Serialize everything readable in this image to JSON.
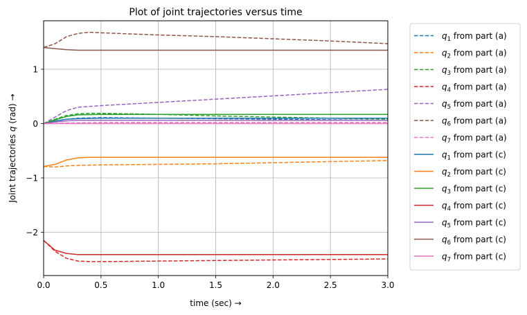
{
  "chart_data": {
    "type": "line",
    "title": "Plot of joint trajectories versus time",
    "xlabel": "time (sec)  →",
    "ylabel": "Joint trajectories q (rad)  →",
    "xlim": [
      0,
      3
    ],
    "ylim": [
      -2.8,
      1.9
    ],
    "xticks": [
      0,
      0.5,
      1,
      1.5,
      2,
      2.5,
      3
    ],
    "xtick_labels": [
      "0.0",
      "0.5",
      "1.0",
      "1.5",
      "2.0",
      "2.5",
      "3.0"
    ],
    "yticks": [
      -2,
      -1,
      0,
      1
    ],
    "ytick_labels": [
      "−2",
      "−1",
      "0",
      "1"
    ],
    "grid": true,
    "legend_position": "outside-right",
    "series": [
      {
        "name": "q_1 from part (a)",
        "joint": "1",
        "part": "(a)",
        "color": "#1f77b4",
        "dash": "dashed",
        "x": [
          0,
          0.1,
          0.2,
          0.3,
          0.5,
          1,
          1.5,
          2,
          2.5,
          3
        ],
        "y": [
          0,
          0.04,
          0.08,
          0.1,
          0.11,
          0.1,
          0.09,
          0.08,
          0.07,
          0.06
        ]
      },
      {
        "name": "q_2 from part (a)",
        "joint": "2",
        "part": "(a)",
        "color": "#ff7f0e",
        "dash": "dashed",
        "x": [
          0,
          0.1,
          0.2,
          0.3,
          0.5,
          1,
          1.5,
          2,
          2.5,
          3
        ],
        "y": [
          -0.79,
          -0.8,
          -0.78,
          -0.77,
          -0.76,
          -0.75,
          -0.74,
          -0.72,
          -0.7,
          -0.68
        ]
      },
      {
        "name": "q_3 from part (a)",
        "joint": "3",
        "part": "(a)",
        "color": "#2ca02c",
        "dash": "dashed",
        "x": [
          0,
          0.1,
          0.2,
          0.3,
          0.4,
          0.5,
          1,
          1.5,
          2,
          2.5,
          3
        ],
        "y": [
          0,
          0.08,
          0.15,
          0.18,
          0.19,
          0.19,
          0.17,
          0.14,
          0.12,
          0.1,
          0.08
        ]
      },
      {
        "name": "q_4 from part (a)",
        "joint": "4",
        "part": "(a)",
        "color": "#d62728",
        "dash": "dashed",
        "x": [
          0,
          0.1,
          0.2,
          0.3,
          0.4,
          0.5,
          1,
          1.5,
          2,
          2.5,
          3
        ],
        "y": [
          -2.15,
          -2.35,
          -2.48,
          -2.53,
          -2.54,
          -2.54,
          -2.53,
          -2.52,
          -2.51,
          -2.5,
          -2.49
        ]
      },
      {
        "name": "q_5 from part (a)",
        "joint": "5",
        "part": "(a)",
        "color": "#9467bd",
        "dash": "dashed",
        "x": [
          0,
          0.1,
          0.2,
          0.3,
          0.5,
          1,
          1.5,
          2,
          2.5,
          3
        ],
        "y": [
          0,
          0.12,
          0.24,
          0.3,
          0.33,
          0.39,
          0.45,
          0.51,
          0.57,
          0.63
        ]
      },
      {
        "name": "q_6 from part (a)",
        "joint": "6",
        "part": "(a)",
        "color": "#8c564b",
        "dash": "dashed",
        "x": [
          0,
          0.1,
          0.2,
          0.3,
          0.4,
          0.5,
          1,
          1.5,
          2,
          2.5,
          3
        ],
        "y": [
          1.4,
          1.47,
          1.6,
          1.66,
          1.68,
          1.67,
          1.63,
          1.6,
          1.56,
          1.52,
          1.47
        ]
      },
      {
        "name": "q_7 from part (a)",
        "joint": "7",
        "part": "(a)",
        "color": "#e377c2",
        "dash": "dashed",
        "x": [
          0,
          0.2,
          0.5,
          1,
          1.5,
          2,
          2.5,
          3
        ],
        "y": [
          0,
          0.01,
          0.02,
          0.02,
          0.02,
          0.02,
          0.02,
          0.02
        ]
      },
      {
        "name": "q_1 from part (c)",
        "joint": "1",
        "part": "(c)",
        "color": "#1f77b4",
        "dash": "solid",
        "x": [
          0,
          0.1,
          0.2,
          0.3,
          0.5,
          1,
          1.5,
          2,
          2.5,
          3
        ],
        "y": [
          0,
          0.05,
          0.08,
          0.09,
          0.1,
          0.1,
          0.1,
          0.1,
          0.1,
          0.1
        ]
      },
      {
        "name": "q_2 from part (c)",
        "joint": "2",
        "part": "(c)",
        "color": "#ff7f0e",
        "dash": "solid",
        "x": [
          0,
          0.1,
          0.2,
          0.3,
          0.4,
          0.5,
          1,
          1.5,
          2,
          2.5,
          3
        ],
        "y": [
          -0.79,
          -0.75,
          -0.67,
          -0.63,
          -0.62,
          -0.62,
          -0.62,
          -0.62,
          -0.62,
          -0.62,
          -0.62
        ]
      },
      {
        "name": "q_3 from part (c)",
        "joint": "3",
        "part": "(c)",
        "color": "#2ca02c",
        "dash": "solid",
        "x": [
          0,
          0.1,
          0.2,
          0.3,
          0.5,
          1,
          1.5,
          2,
          2.5,
          3
        ],
        "y": [
          0,
          0.07,
          0.13,
          0.16,
          0.17,
          0.17,
          0.17,
          0.17,
          0.17,
          0.17
        ]
      },
      {
        "name": "q_4 from part (c)",
        "joint": "4",
        "part": "(c)",
        "color": "#d62728",
        "dash": "solid",
        "x": [
          0,
          0.1,
          0.2,
          0.3,
          0.5,
          1,
          1.5,
          2,
          2.5,
          3
        ],
        "y": [
          -2.15,
          -2.33,
          -2.39,
          -2.41,
          -2.41,
          -2.41,
          -2.41,
          -2.41,
          -2.41,
          -2.41
        ]
      },
      {
        "name": "q_5 from part (c)",
        "joint": "5",
        "part": "(c)",
        "color": "#9467bd",
        "dash": "solid",
        "x": [
          0,
          0.1,
          0.2,
          0.3,
          0.5,
          1,
          1.5,
          2,
          2.5,
          3
        ],
        "y": [
          0,
          0.03,
          0.05,
          0.06,
          0.06,
          0.06,
          0.06,
          0.06,
          0.06,
          0.06
        ]
      },
      {
        "name": "q_6 from part (c)",
        "joint": "6",
        "part": "(c)",
        "color": "#8c564b",
        "dash": "solid",
        "x": [
          0,
          0.1,
          0.2,
          0.3,
          0.5,
          1,
          1.5,
          2,
          2.5,
          3
        ],
        "y": [
          1.4,
          1.38,
          1.36,
          1.35,
          1.35,
          1.35,
          1.35,
          1.35,
          1.35,
          1.35
        ]
      },
      {
        "name": "q_7 from part (c)",
        "joint": "7",
        "part": "(c)",
        "color": "#e377c2",
        "dash": "solid",
        "x": [
          0,
          0.5,
          1,
          1.5,
          2,
          2.5,
          3
        ],
        "y": [
          0,
          0,
          0,
          0,
          0,
          0,
          0
        ]
      }
    ]
  }
}
